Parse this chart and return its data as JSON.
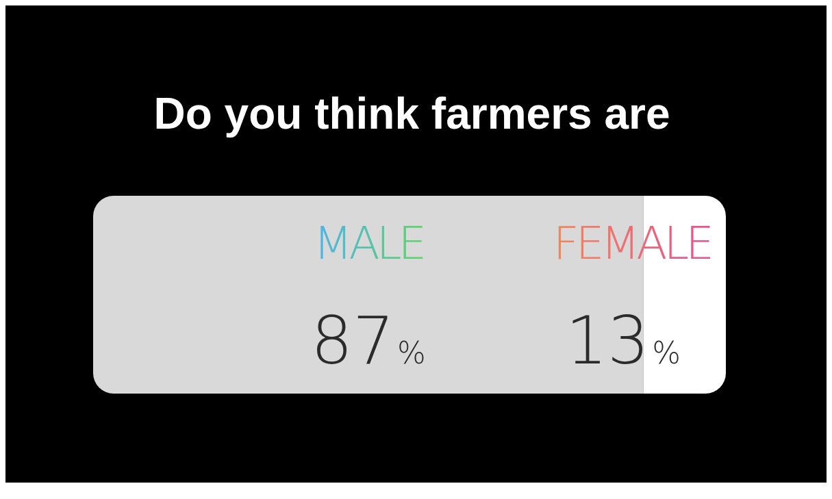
{
  "chart_data": {
    "type": "bar",
    "title": "Do you think farmers are",
    "orientation": "horizontal",
    "stacked": true,
    "categories": [
      null
    ],
    "xlim": [
      0,
      100
    ],
    "series": [
      {
        "name": "MALE",
        "color": "#d9d9d9",
        "values": [
          87
        ],
        "value_labels": [
          "87%"
        ]
      },
      {
        "name": "FEMALE",
        "color": "#ffffff",
        "values": [
          13
        ],
        "value_labels": [
          "13%"
        ]
      }
    ]
  }
}
